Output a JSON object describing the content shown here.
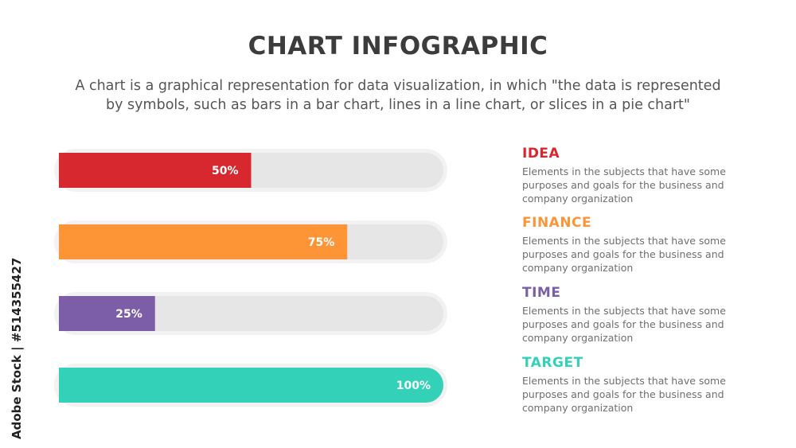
{
  "header": {
    "title": "CHART INFOGRAPHIC",
    "subtitle_line1": "A chart is a graphical representation for data visualization, in which \"the data is represented",
    "subtitle_line2": "by symbols, such as bars in a bar chart, lines in a line chart, or slices in a pie chart\""
  },
  "chart_data": {
    "type": "bar",
    "orientation": "horizontal",
    "categories": [
      "IDEA",
      "FINANCE",
      "TIME",
      "TARGET"
    ],
    "values": [
      50,
      75,
      25,
      100
    ],
    "value_labels": [
      "50%",
      "75%",
      "25%",
      "100%"
    ],
    "colors": [
      "#d7282f",
      "#fd9536",
      "#7c5ea8",
      "#33d1b7"
    ],
    "track_color": "#e6e6e6",
    "ylim": [
      0,
      100
    ]
  },
  "legend": {
    "items": [
      {
        "title": "IDEA",
        "color": "#d7282f",
        "desc_line1": "Elements in the subjects  that have some",
        "desc_line2": "purposes and goals for the  business and",
        "desc_line3": "company organization"
      },
      {
        "title": "FINANCE",
        "color": "#fd9536",
        "desc_line1": "Elements in the subjects  that have some",
        "desc_line2": "purposes and goals for the  business and",
        "desc_line3": "company organization"
      },
      {
        "title": "TIME",
        "color": "#7c5ea8",
        "desc_line1": "Elements in the subjects  that have some",
        "desc_line2": "purposes and goals for the  business and",
        "desc_line3": "company organization"
      },
      {
        "title": "TARGET",
        "color": "#33d1b7",
        "desc_line1": "Elements in the subjects  that have some",
        "desc_line2": "purposes and goals for the  business and",
        "desc_line3": "company organization"
      }
    ]
  },
  "watermark": {
    "text": "Adobe Stock | #514355427"
  }
}
